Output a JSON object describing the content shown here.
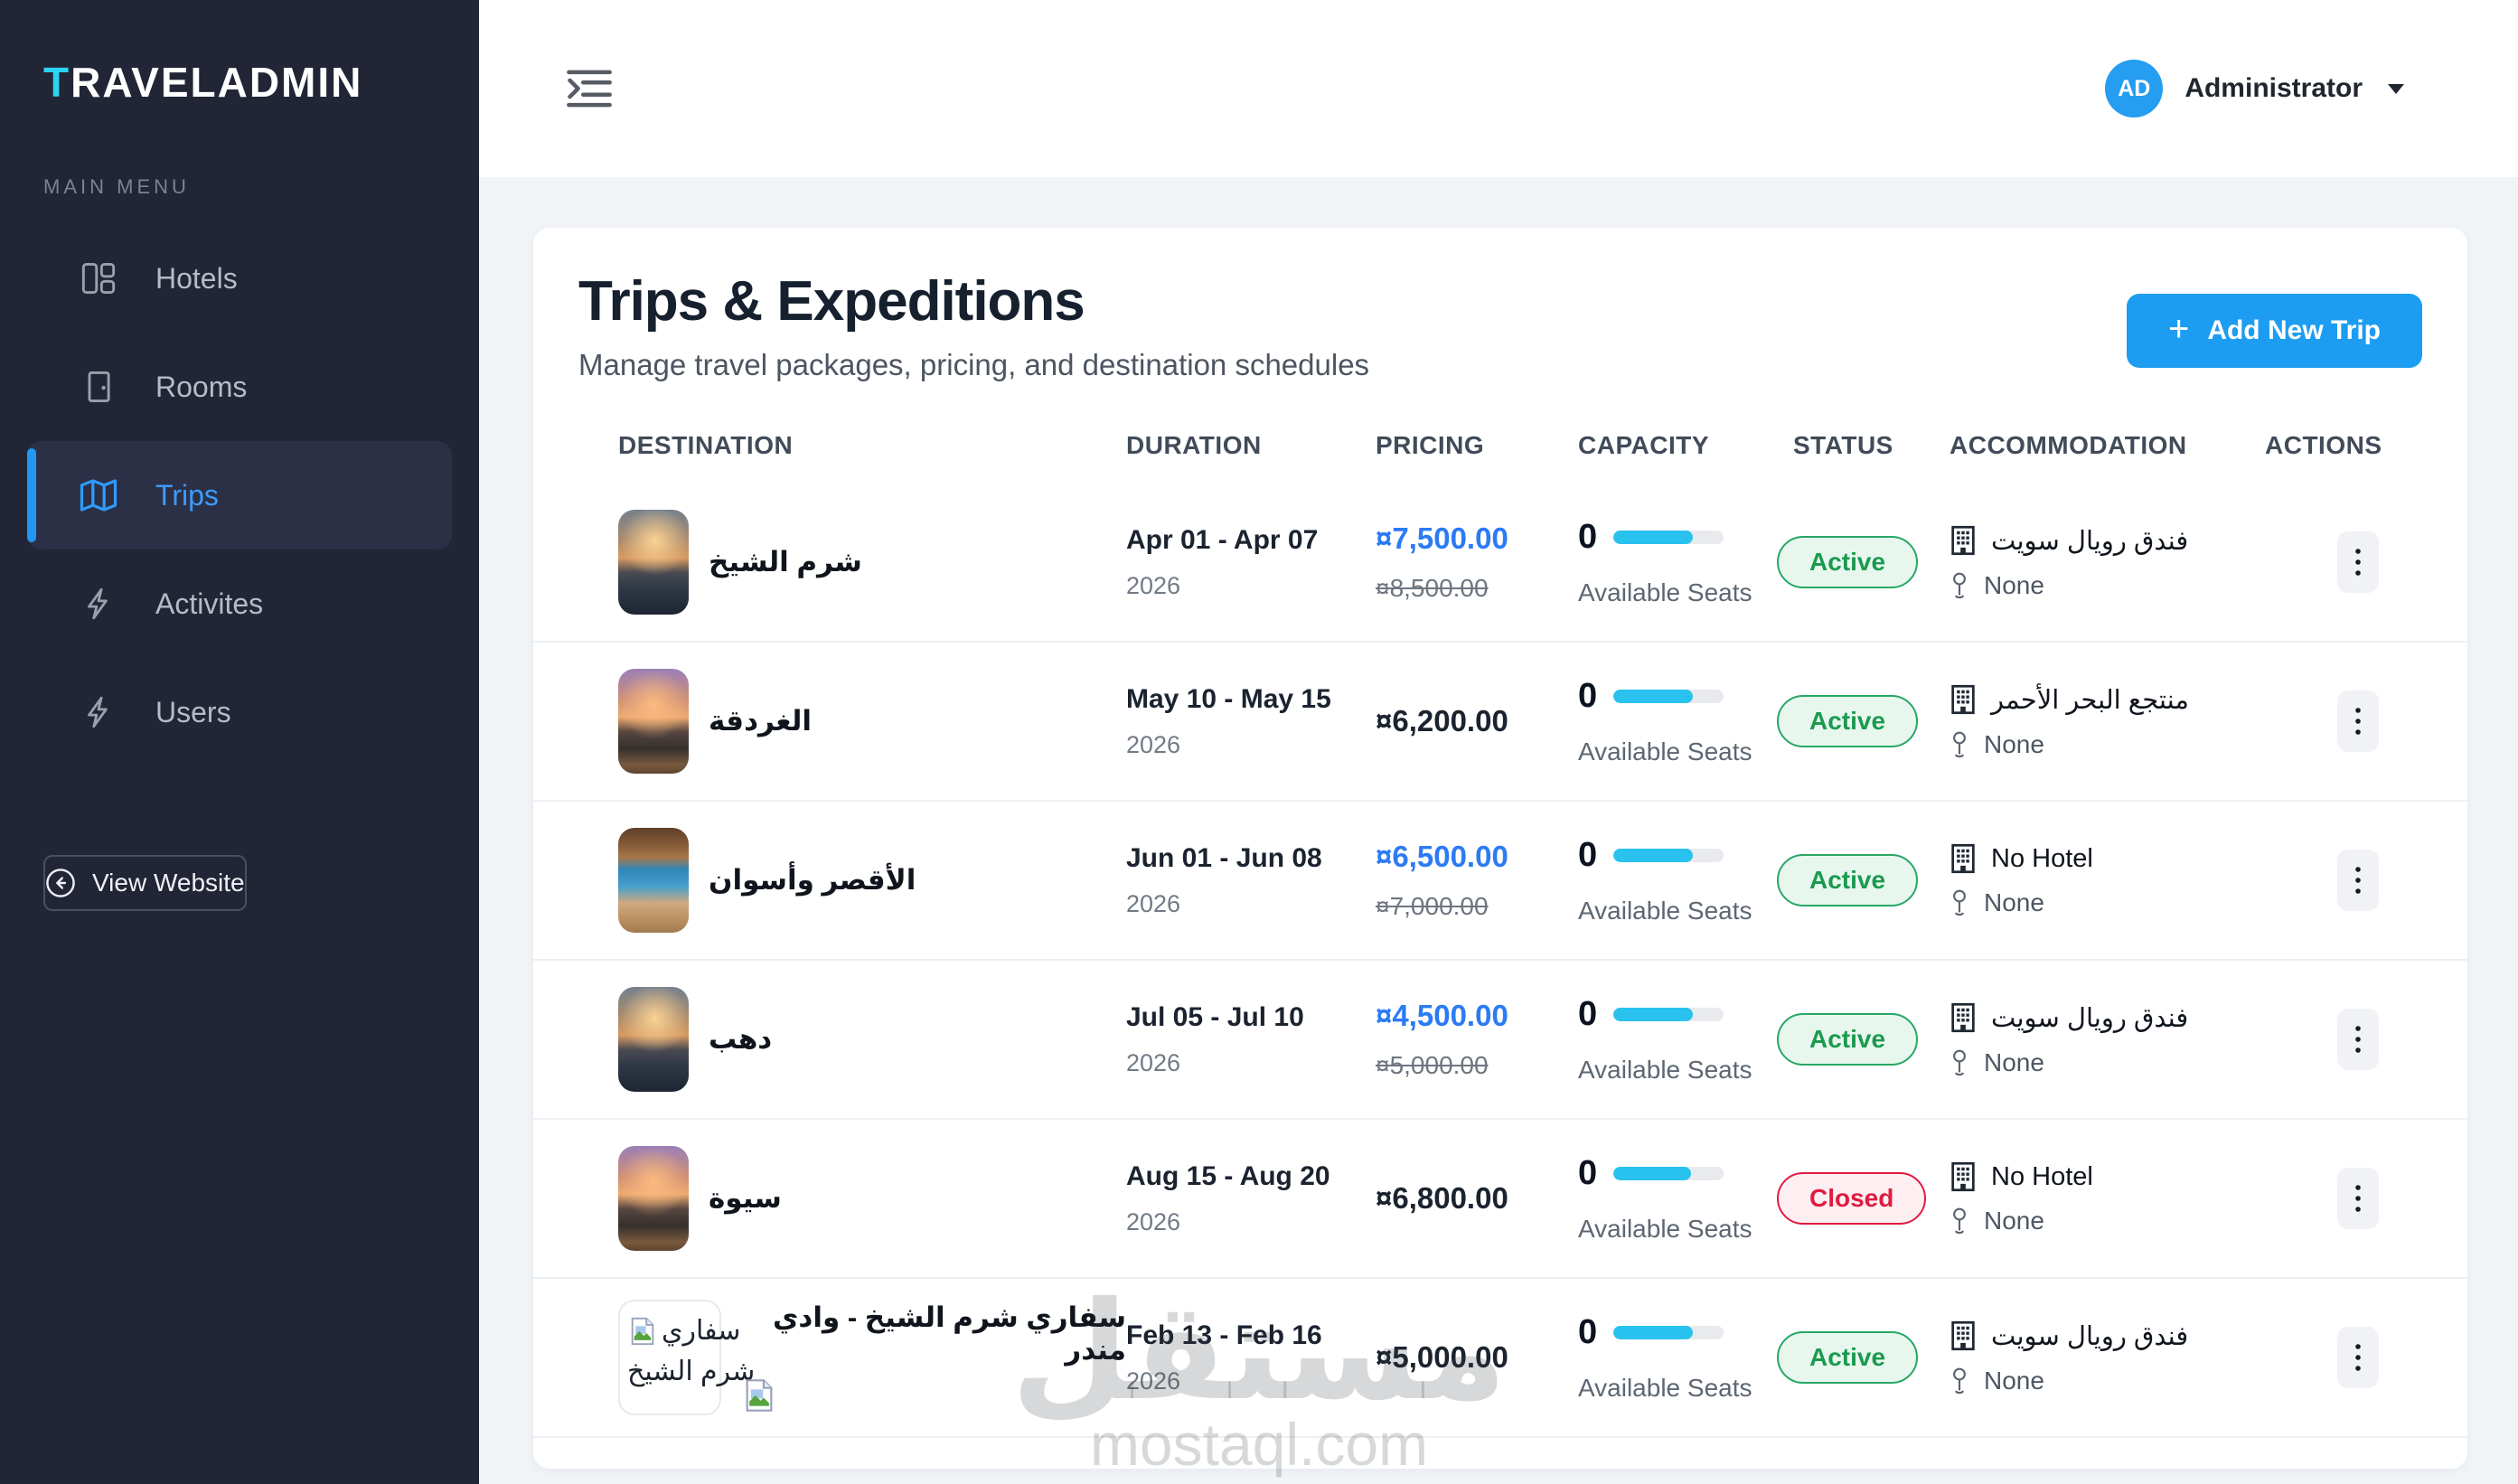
{
  "sidebar": {
    "logo_first_letter": "T",
    "logo_rest": "RAVELADMIN",
    "section_label": "MAIN MENU",
    "items": [
      {
        "label": "Hotels",
        "icon": "layout-panels-icon",
        "active": false
      },
      {
        "label": "Rooms",
        "icon": "door-icon",
        "active": false
      },
      {
        "label": "Trips",
        "icon": "map-icon",
        "active": true
      },
      {
        "label": "Activites",
        "icon": "zap-icon",
        "active": false
      },
      {
        "label": "Users",
        "icon": "zap-icon",
        "active": false
      }
    ],
    "view_website_label": "View Website"
  },
  "topbar": {
    "avatar_initials": "AD",
    "user_name": "Administrator"
  },
  "page": {
    "title": "Trips & Expeditions",
    "subtitle": "Manage travel packages, pricing, and destination schedules",
    "add_button_label": "Add New Trip",
    "add_button_plus": "+"
  },
  "table": {
    "columns": [
      "DESTINATION",
      "DURATION",
      "PRICING",
      "CAPACITY",
      "STATUS",
      "ACCOMMODATION",
      "ACTIONS"
    ],
    "rows": [
      {
        "destination": "شرم الشيخ",
        "image": "sunset",
        "date_range": "Apr 01 - Apr 07",
        "year": "2026",
        "price": "¤7,500.00",
        "old_price": "¤8,500.00",
        "capacity": "0",
        "capacity_label": "Available Seats",
        "capacity_percent": 72,
        "status": "Active",
        "status_type": "active",
        "hotel": "فندق رويال سويت",
        "guide": "None"
      },
      {
        "destination": "الغردقة",
        "image": "harbor",
        "date_range": "May 10 - May 15",
        "year": "2026",
        "price": "¤6,200.00",
        "old_price": null,
        "capacity": "0",
        "capacity_label": "Available Seats",
        "capacity_percent": 72,
        "status": "Active",
        "status_type": "active",
        "hotel": "منتجع البحر الأحمر",
        "guide": "None"
      },
      {
        "destination": "الأقصر وأسوان",
        "image": "arch",
        "date_range": "Jun 01 - Jun 08",
        "year": "2026",
        "price": "¤6,500.00",
        "old_price": "¤7,000.00",
        "capacity": "0",
        "capacity_label": "Available Seats",
        "capacity_percent": 72,
        "status": "Active",
        "status_type": "active",
        "hotel": "No Hotel",
        "guide": "None"
      },
      {
        "destination": "دهب",
        "image": "sunset",
        "date_range": "Jul 05 - Jul 10",
        "year": "2026",
        "price": "¤4,500.00",
        "old_price": "¤5,000.00",
        "capacity": "0",
        "capacity_label": "Available Seats",
        "capacity_percent": 72,
        "status": "Active",
        "status_type": "active",
        "hotel": "فندق رويال سويت",
        "guide": "None"
      },
      {
        "destination": "سيوة",
        "image": "harbor",
        "date_range": "Aug 15 - Aug 20",
        "year": "2026",
        "price": "¤6,800.00",
        "old_price": null,
        "capacity": "0",
        "capacity_label": "Available Seats",
        "capacity_percent": 70,
        "status": "Closed",
        "status_type": "closed",
        "hotel": "No Hotel",
        "guide": "None"
      },
      {
        "destination": "سفاري شرم الشيخ - وادي مندر",
        "image": "broken",
        "image_alt_line1": "سفاري",
        "image_alt_line2": "شرم الشيخ",
        "title_broken_icon": true,
        "date_range": "Feb 13 - Feb 16",
        "year": "2026",
        "price": "¤5,000.00",
        "old_price": null,
        "capacity": "0",
        "capacity_label": "Available Seats",
        "capacity_percent": 72,
        "status": "Active",
        "status_type": "active",
        "hotel": "فندق رويال سويت",
        "guide": "None"
      }
    ]
  },
  "watermark": {
    "arabic": "مستقل",
    "domain": "mostaql.com"
  },
  "colors": {
    "accent_blue": "#1d9df1",
    "price_blue": "#2c7bf4",
    "capacity_cyan": "#29c2ef",
    "active_green": "#1a9a4e",
    "closed_red": "#e01b41",
    "sidebar_bg": "#212535",
    "logo_cyan": "#2ed3f0"
  }
}
